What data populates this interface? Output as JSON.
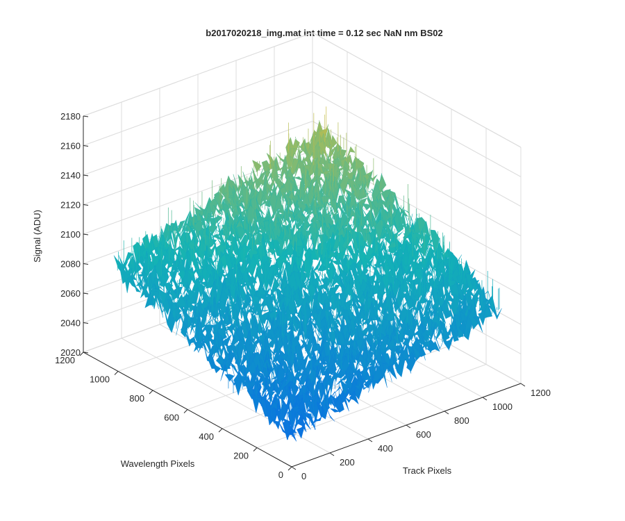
{
  "chart_data": {
    "type": "surface",
    "title": "b2017020218_img.mat int time = 0.12 sec  NaN nm BS02",
    "xlabel": "Track Pixels",
    "ylabel": "Wavelength Pixels",
    "zlabel": "Signal (ADU)",
    "xlim": [
      0,
      1200
    ],
    "ylim": [
      0,
      1200
    ],
    "zlim": [
      2020,
      2180
    ],
    "x_ticks": [
      "0",
      "200",
      "400",
      "600",
      "800",
      "1000",
      "1200"
    ],
    "y_ticks": [
      "0",
      "200",
      "400",
      "600",
      "800",
      "1000",
      "1200"
    ],
    "z_ticks": [
      "2020",
      "2040",
      "2060",
      "2080",
      "2100",
      "2120",
      "2140",
      "2160",
      "2180"
    ],
    "grid": true,
    "colormap": "parula",
    "data_extent": {
      "x": [
        0,
        1100
      ],
      "y": [
        0,
        1024
      ]
    },
    "surface_grid": {
      "x": [
        0,
        275,
        550,
        825,
        1100
      ],
      "y": [
        0,
        256,
        512,
        768,
        1024
      ],
      "z": [
        [
          2042,
          2052,
          2065,
          2078,
          2088
        ],
        [
          2050,
          2062,
          2075,
          2088,
          2100
        ],
        [
          2060,
          2073,
          2086,
          2100,
          2112
        ],
        [
          2068,
          2082,
          2096,
          2110,
          2122
        ],
        [
          2075,
          2090,
          2104,
          2118,
          2130
        ]
      ],
      "noise_amplitude": 18
    },
    "colors": {
      "low": "#0a72e0",
      "mid": "#14b4b4",
      "high": "#f0c030",
      "grid": "#dcdcdc",
      "axis": "#262626"
    }
  }
}
